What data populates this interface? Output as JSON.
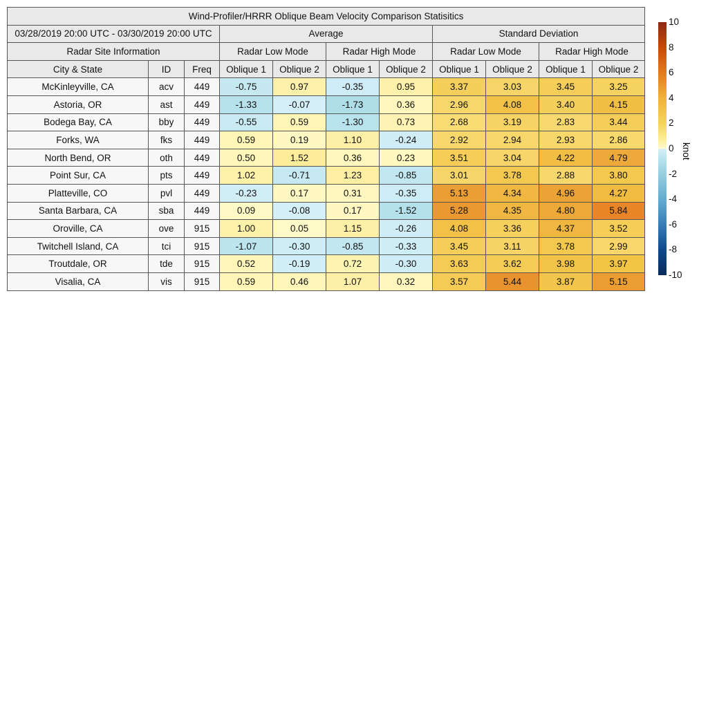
{
  "chart_data": {
    "type": "table",
    "title": "Wind-Profiler/HRRR Oblique Beam Velocity Comparison Statisitics",
    "date_range": "03/28/2019 20:00 UTC - 03/30/2019 20:00 UTC",
    "group_headers": {
      "site": "Radar Site Information",
      "average": "Average",
      "std": "Standard Deviation"
    },
    "mode_headers": [
      "Radar Low Mode",
      "Radar High Mode",
      "Radar Low Mode",
      "Radar High Mode"
    ],
    "column_headers": [
      "City & State",
      "ID",
      "Freq",
      "Oblique 1",
      "Oblique 2",
      "Oblique 1",
      "Oblique 2",
      "Oblique 1",
      "Oblique 2",
      "Oblique 1",
      "Oblique 2"
    ],
    "rows": [
      {
        "city": "McKinleyville, CA",
        "id": "acv",
        "freq": "449",
        "values": [
          "-0.75",
          "0.97",
          "-0.35",
          "0.95",
          "3.37",
          "3.03",
          "3.45",
          "3.25"
        ]
      },
      {
        "city": "Astoria, OR",
        "id": "ast",
        "freq": "449",
        "values": [
          "-1.33",
          "-0.07",
          "-1.73",
          "0.36",
          "2.96",
          "4.08",
          "3.40",
          "4.15"
        ]
      },
      {
        "city": "Bodega Bay, CA",
        "id": "bby",
        "freq": "449",
        "values": [
          "-0.55",
          "0.59",
          "-1.30",
          "0.73",
          "2.68",
          "3.19",
          "2.83",
          "3.44"
        ]
      },
      {
        "city": "Forks, WA",
        "id": "fks",
        "freq": "449",
        "values": [
          "0.59",
          "0.19",
          "1.10",
          "-0.24",
          "2.92",
          "2.94",
          "2.93",
          "2.86"
        ]
      },
      {
        "city": "North Bend, OR",
        "id": "oth",
        "freq": "449",
        "values": [
          "0.50",
          "1.52",
          "0.36",
          "0.23",
          "3.51",
          "3.04",
          "4.22",
          "4.79"
        ]
      },
      {
        "city": "Point Sur, CA",
        "id": "pts",
        "freq": "449",
        "values": [
          "1.02",
          "-0.71",
          "1.23",
          "-0.85",
          "3.01",
          "3.78",
          "2.88",
          "3.80"
        ]
      },
      {
        "city": "Platteville, CO",
        "id": "pvl",
        "freq": "449",
        "values": [
          "-0.23",
          "0.17",
          "0.31",
          "-0.35",
          "5.13",
          "4.34",
          "4.96",
          "4.27"
        ]
      },
      {
        "city": "Santa Barbara, CA",
        "id": "sba",
        "freq": "449",
        "values": [
          "0.09",
          "-0.08",
          "0.17",
          "-1.52",
          "5.28",
          "4.35",
          "4.80",
          "5.84"
        ]
      },
      {
        "city": "Oroville, CA",
        "id": "ove",
        "freq": "915",
        "values": [
          "1.00",
          "0.05",
          "1.15",
          "-0.26",
          "4.08",
          "3.36",
          "4.37",
          "3.52"
        ]
      },
      {
        "city": "Twitchell Island, CA",
        "id": "tci",
        "freq": "915",
        "values": [
          "-1.07",
          "-0.30",
          "-0.85",
          "-0.33",
          "3.45",
          "3.11",
          "3.78",
          "2.99"
        ]
      },
      {
        "city": "Troutdale, OR",
        "id": "tde",
        "freq": "915",
        "values": [
          "0.52",
          "-0.19",
          "0.72",
          "-0.30",
          "3.63",
          "3.62",
          "3.98",
          "3.97"
        ]
      },
      {
        "city": "Visalia, CA",
        "id": "vis",
        "freq": "915",
        "values": [
          "0.59",
          "0.46",
          "1.07",
          "0.32",
          "3.57",
          "5.44",
          "3.87",
          "5.15"
        ]
      }
    ],
    "colorbar": {
      "label": "knot",
      "range": [
        -10,
        10
      ],
      "ticks": [
        "10",
        "8",
        "6",
        "4",
        "2",
        "0",
        "-2",
        "-4",
        "-6",
        "-8",
        "-10"
      ]
    }
  }
}
